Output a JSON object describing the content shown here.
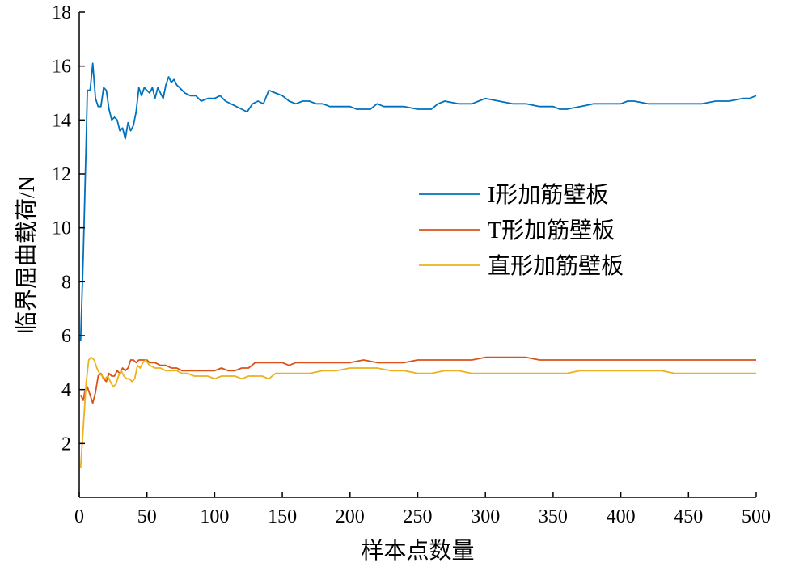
{
  "chart_data": {
    "type": "line",
    "xlabel": "样本点数量",
    "ylabel": "临界屈曲载荷/N",
    "xlim": [
      0,
      500
    ],
    "ylim": [
      0,
      18
    ],
    "xticks": [
      0,
      50,
      100,
      150,
      200,
      250,
      300,
      350,
      400,
      450,
      500
    ],
    "yticks": [
      2,
      4,
      6,
      8,
      10,
      12,
      14,
      16,
      18
    ],
    "legend_position": "center-right",
    "grid": false,
    "series": [
      {
        "name": "I形加筋壁板",
        "color": "#0072BD",
        "points": [
          [
            1,
            5.8
          ],
          [
            3,
            9
          ],
          [
            5,
            13
          ],
          [
            6,
            15.1
          ],
          [
            8,
            15.1
          ],
          [
            10,
            16.1
          ],
          [
            12,
            14.8
          ],
          [
            14,
            14.5
          ],
          [
            16,
            14.5
          ],
          [
            18,
            15.2
          ],
          [
            20,
            15.1
          ],
          [
            22,
            14.4
          ],
          [
            24,
            14.0
          ],
          [
            26,
            14.1
          ],
          [
            28,
            14.0
          ],
          [
            30,
            13.6
          ],
          [
            32,
            13.7
          ],
          [
            34,
            13.3
          ],
          [
            36,
            13.9
          ],
          [
            38,
            13.6
          ],
          [
            40,
            13.8
          ],
          [
            42,
            14.3
          ],
          [
            44,
            15.2
          ],
          [
            46,
            14.9
          ],
          [
            48,
            15.2
          ],
          [
            50,
            15.1
          ],
          [
            52,
            15.0
          ],
          [
            54,
            15.2
          ],
          [
            56,
            14.8
          ],
          [
            58,
            15.2
          ],
          [
            60,
            15.0
          ],
          [
            62,
            14.8
          ],
          [
            64,
            15.3
          ],
          [
            66,
            15.6
          ],
          [
            68,
            15.4
          ],
          [
            70,
            15.5
          ],
          [
            72,
            15.3
          ],
          [
            74,
            15.2
          ],
          [
            78,
            15.0
          ],
          [
            82,
            14.9
          ],
          [
            86,
            14.9
          ],
          [
            90,
            14.7
          ],
          [
            95,
            14.8
          ],
          [
            100,
            14.8
          ],
          [
            104,
            14.9
          ],
          [
            108,
            14.7
          ],
          [
            112,
            14.6
          ],
          [
            116,
            14.5
          ],
          [
            120,
            14.4
          ],
          [
            124,
            14.3
          ],
          [
            128,
            14.6
          ],
          [
            132,
            14.7
          ],
          [
            136,
            14.6
          ],
          [
            140,
            15.1
          ],
          [
            145,
            15.0
          ],
          [
            150,
            14.9
          ],
          [
            155,
            14.7
          ],
          [
            160,
            14.6
          ],
          [
            165,
            14.7
          ],
          [
            170,
            14.7
          ],
          [
            175,
            14.6
          ],
          [
            180,
            14.6
          ],
          [
            185,
            14.5
          ],
          [
            190,
            14.5
          ],
          [
            195,
            14.5
          ],
          [
            200,
            14.5
          ],
          [
            205,
            14.4
          ],
          [
            210,
            14.4
          ],
          [
            215,
            14.4
          ],
          [
            220,
            14.6
          ],
          [
            225,
            14.5
          ],
          [
            230,
            14.5
          ],
          [
            240,
            14.5
          ],
          [
            250,
            14.4
          ],
          [
            255,
            14.4
          ],
          [
            260,
            14.4
          ],
          [
            265,
            14.6
          ],
          [
            270,
            14.7
          ],
          [
            280,
            14.6
          ],
          [
            290,
            14.6
          ],
          [
            295,
            14.7
          ],
          [
            300,
            14.8
          ],
          [
            310,
            14.7
          ],
          [
            320,
            14.6
          ],
          [
            330,
            14.6
          ],
          [
            340,
            14.5
          ],
          [
            350,
            14.5
          ],
          [
            355,
            14.4
          ],
          [
            360,
            14.4
          ],
          [
            370,
            14.5
          ],
          [
            380,
            14.6
          ],
          [
            390,
            14.6
          ],
          [
            400,
            14.6
          ],
          [
            405,
            14.7
          ],
          [
            410,
            14.7
          ],
          [
            420,
            14.6
          ],
          [
            430,
            14.6
          ],
          [
            440,
            14.6
          ],
          [
            450,
            14.6
          ],
          [
            460,
            14.6
          ],
          [
            470,
            14.7
          ],
          [
            480,
            14.7
          ],
          [
            490,
            14.8
          ],
          [
            495,
            14.8
          ],
          [
            500,
            14.9
          ]
        ]
      },
      {
        "name": "T形加筋壁板",
        "color": "#D95319",
        "points": [
          [
            1,
            3.8
          ],
          [
            3,
            3.6
          ],
          [
            4,
            3.9
          ],
          [
            6,
            4.1
          ],
          [
            8,
            3.8
          ],
          [
            10,
            3.5
          ],
          [
            12,
            3.9
          ],
          [
            14,
            4.5
          ],
          [
            16,
            4.6
          ],
          [
            18,
            4.4
          ],
          [
            20,
            4.3
          ],
          [
            22,
            4.6
          ],
          [
            24,
            4.5
          ],
          [
            26,
            4.5
          ],
          [
            28,
            4.7
          ],
          [
            30,
            4.6
          ],
          [
            32,
            4.8
          ],
          [
            34,
            4.7
          ],
          [
            36,
            4.8
          ],
          [
            38,
            5.1
          ],
          [
            40,
            5.1
          ],
          [
            42,
            5.0
          ],
          [
            44,
            5.1
          ],
          [
            46,
            5.1
          ],
          [
            48,
            5.1
          ],
          [
            50,
            5.1
          ],
          [
            52,
            5.0
          ],
          [
            56,
            5.0
          ],
          [
            60,
            4.9
          ],
          [
            64,
            4.9
          ],
          [
            68,
            4.8
          ],
          [
            72,
            4.8
          ],
          [
            76,
            4.7
          ],
          [
            80,
            4.7
          ],
          [
            85,
            4.7
          ],
          [
            90,
            4.7
          ],
          [
            95,
            4.7
          ],
          [
            100,
            4.7
          ],
          [
            105,
            4.8
          ],
          [
            110,
            4.7
          ],
          [
            115,
            4.7
          ],
          [
            120,
            4.8
          ],
          [
            125,
            4.8
          ],
          [
            130,
            5.0
          ],
          [
            135,
            5.0
          ],
          [
            140,
            5.0
          ],
          [
            150,
            5.0
          ],
          [
            155,
            4.9
          ],
          [
            160,
            5.0
          ],
          [
            170,
            5.0
          ],
          [
            180,
            5.0
          ],
          [
            190,
            5.0
          ],
          [
            200,
            5.0
          ],
          [
            210,
            5.1
          ],
          [
            220,
            5.0
          ],
          [
            230,
            5.0
          ],
          [
            240,
            5.0
          ],
          [
            250,
            5.1
          ],
          [
            260,
            5.1
          ],
          [
            270,
            5.1
          ],
          [
            280,
            5.1
          ],
          [
            290,
            5.1
          ],
          [
            300,
            5.2
          ],
          [
            310,
            5.2
          ],
          [
            320,
            5.2
          ],
          [
            330,
            5.2
          ],
          [
            340,
            5.1
          ],
          [
            350,
            5.1
          ],
          [
            360,
            5.1
          ],
          [
            370,
            5.1
          ],
          [
            380,
            5.1
          ],
          [
            390,
            5.1
          ],
          [
            400,
            5.1
          ],
          [
            410,
            5.1
          ],
          [
            420,
            5.1
          ],
          [
            430,
            5.1
          ],
          [
            440,
            5.1
          ],
          [
            450,
            5.1
          ],
          [
            460,
            5.1
          ],
          [
            470,
            5.1
          ],
          [
            480,
            5.1
          ],
          [
            490,
            5.1
          ],
          [
            500,
            5.1
          ]
        ]
      },
      {
        "name": "直形加筋壁板",
        "color": "#EDB120",
        "points": [
          [
            1,
            1.1
          ],
          [
            3,
            2.6
          ],
          [
            5,
            4.2
          ],
          [
            7,
            5.1
          ],
          [
            9,
            5.2
          ],
          [
            11,
            5.1
          ],
          [
            13,
            4.8
          ],
          [
            15,
            4.6
          ],
          [
            17,
            4.5
          ],
          [
            19,
            4.4
          ],
          [
            21,
            4.5
          ],
          [
            23,
            4.3
          ],
          [
            25,
            4.1
          ],
          [
            27,
            4.2
          ],
          [
            29,
            4.5
          ],
          [
            31,
            4.7
          ],
          [
            33,
            4.5
          ],
          [
            35,
            4.4
          ],
          [
            37,
            4.4
          ],
          [
            39,
            4.3
          ],
          [
            41,
            4.4
          ],
          [
            43,
            4.9
          ],
          [
            45,
            4.8
          ],
          [
            47,
            5.0
          ],
          [
            49,
            5.1
          ],
          [
            52,
            4.9
          ],
          [
            56,
            4.8
          ],
          [
            60,
            4.8
          ],
          [
            64,
            4.7
          ],
          [
            68,
            4.7
          ],
          [
            72,
            4.7
          ],
          [
            76,
            4.6
          ],
          [
            80,
            4.6
          ],
          [
            85,
            4.5
          ],
          [
            90,
            4.5
          ],
          [
            95,
            4.5
          ],
          [
            100,
            4.4
          ],
          [
            105,
            4.5
          ],
          [
            110,
            4.5
          ],
          [
            115,
            4.5
          ],
          [
            120,
            4.4
          ],
          [
            125,
            4.5
          ],
          [
            130,
            4.5
          ],
          [
            135,
            4.5
          ],
          [
            140,
            4.4
          ],
          [
            145,
            4.6
          ],
          [
            150,
            4.6
          ],
          [
            160,
            4.6
          ],
          [
            170,
            4.6
          ],
          [
            180,
            4.7
          ],
          [
            190,
            4.7
          ],
          [
            200,
            4.8
          ],
          [
            210,
            4.8
          ],
          [
            220,
            4.8
          ],
          [
            230,
            4.7
          ],
          [
            240,
            4.7
          ],
          [
            250,
            4.6
          ],
          [
            260,
            4.6
          ],
          [
            270,
            4.7
          ],
          [
            280,
            4.7
          ],
          [
            290,
            4.6
          ],
          [
            300,
            4.6
          ],
          [
            310,
            4.6
          ],
          [
            320,
            4.6
          ],
          [
            330,
            4.6
          ],
          [
            340,
            4.6
          ],
          [
            350,
            4.6
          ],
          [
            360,
            4.6
          ],
          [
            370,
            4.7
          ],
          [
            380,
            4.7
          ],
          [
            390,
            4.7
          ],
          [
            400,
            4.7
          ],
          [
            410,
            4.7
          ],
          [
            420,
            4.7
          ],
          [
            430,
            4.7
          ],
          [
            440,
            4.6
          ],
          [
            450,
            4.6
          ],
          [
            460,
            4.6
          ],
          [
            470,
            4.6
          ],
          [
            480,
            4.6
          ],
          [
            490,
            4.6
          ],
          [
            500,
            4.6
          ]
        ]
      }
    ]
  }
}
